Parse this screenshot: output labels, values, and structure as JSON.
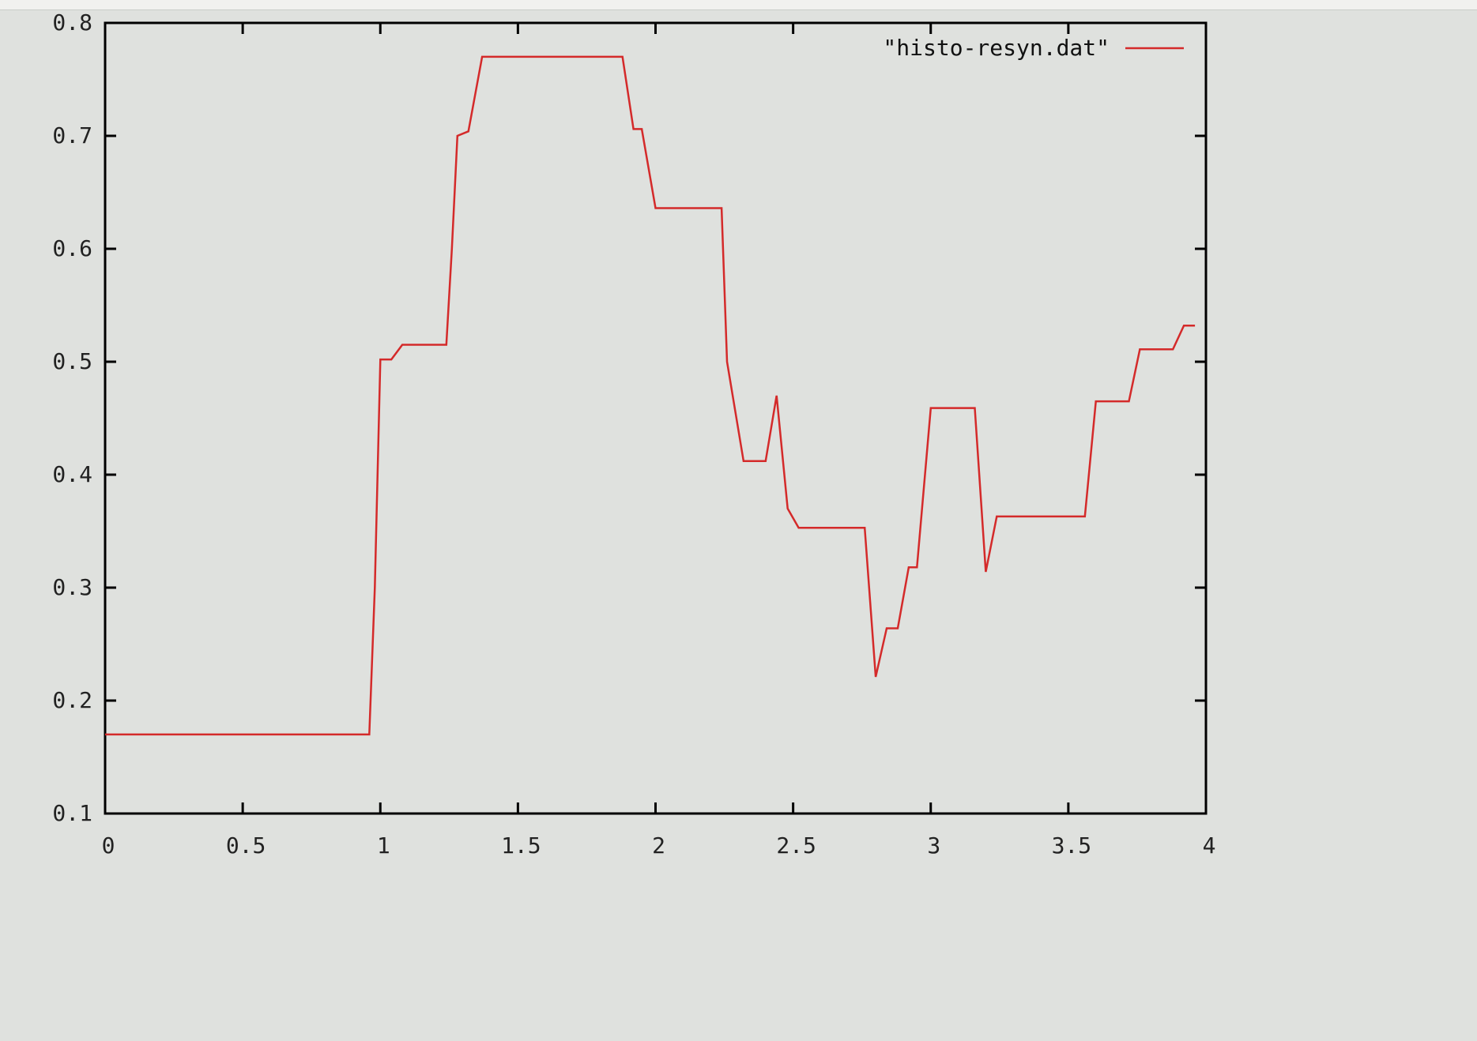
{
  "chart_data": {
    "type": "line",
    "title": "",
    "xlabel": "",
    "ylabel": "",
    "xlim": [
      0,
      4
    ],
    "ylim": [
      0.1,
      0.8
    ],
    "x_ticks": [
      0,
      0.5,
      1,
      1.5,
      2,
      2.5,
      3,
      3.5,
      4
    ],
    "x_tick_labels": [
      "0",
      "0.5",
      "1",
      "1.5",
      "2",
      "2.5",
      "3",
      "3.5",
      "4"
    ],
    "y_ticks": [
      0.1,
      0.2,
      0.3,
      0.4,
      0.5,
      0.6,
      0.7,
      0.8
    ],
    "y_tick_labels": [
      "0.1",
      "0.2",
      "0.3",
      "0.4",
      "0.5",
      "0.6",
      "0.7",
      "0.8"
    ],
    "grid": false,
    "legend_position": "top-right",
    "colors": {
      "background": "#dfe1de",
      "axes": "#000000",
      "series": "#d42a2a"
    },
    "series": [
      {
        "name": "\"histo-resyn.dat\"",
        "color": "#d42a2a",
        "points": [
          [
            0.0,
            0.17
          ],
          [
            0.96,
            0.17
          ],
          [
            0.98,
            0.3
          ],
          [
            1.0,
            0.502
          ],
          [
            1.04,
            0.502
          ],
          [
            1.08,
            0.515
          ],
          [
            1.24,
            0.515
          ],
          [
            1.26,
            0.6
          ],
          [
            1.28,
            0.7
          ],
          [
            1.32,
            0.704
          ],
          [
            1.37,
            0.77
          ],
          [
            1.88,
            0.77
          ],
          [
            1.92,
            0.706
          ],
          [
            1.95,
            0.706
          ],
          [
            2.0,
            0.636
          ],
          [
            2.24,
            0.636
          ],
          [
            2.26,
            0.5
          ],
          [
            2.32,
            0.412
          ],
          [
            2.4,
            0.412
          ],
          [
            2.44,
            0.47
          ],
          [
            2.48,
            0.37
          ],
          [
            2.52,
            0.353
          ],
          [
            2.76,
            0.353
          ],
          [
            2.8,
            0.221
          ],
          [
            2.84,
            0.264
          ],
          [
            2.88,
            0.264
          ],
          [
            2.92,
            0.318
          ],
          [
            2.95,
            0.318
          ],
          [
            3.0,
            0.459
          ],
          [
            3.16,
            0.459
          ],
          [
            3.2,
            0.314
          ],
          [
            3.24,
            0.363
          ],
          [
            3.56,
            0.363
          ],
          [
            3.6,
            0.465
          ],
          [
            3.72,
            0.465
          ],
          [
            3.76,
            0.511
          ],
          [
            3.88,
            0.511
          ],
          [
            3.92,
            0.532
          ],
          [
            3.96,
            0.532
          ]
        ]
      }
    ]
  }
}
